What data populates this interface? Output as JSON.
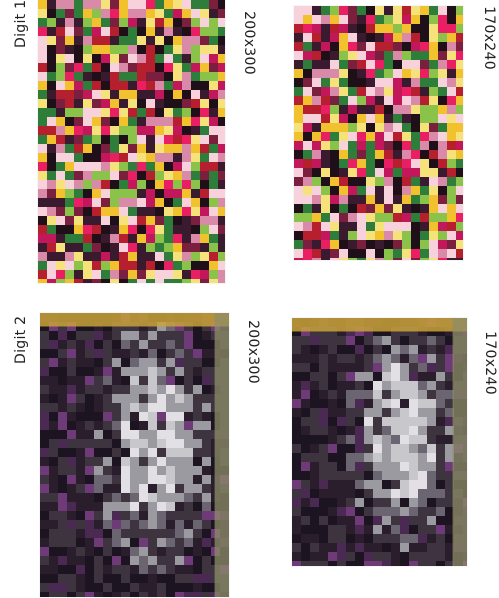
{
  "rows": [
    {
      "label": "Digit 1",
      "palette": "color",
      "rugs": [
        {
          "size": "200x300"
        },
        {
          "size": "170x240"
        }
      ]
    },
    {
      "label": "Digit 2",
      "palette": "mono",
      "rugs": [
        {
          "size": "200x300"
        },
        {
          "size": "170x240"
        }
      ]
    }
  ],
  "colors": {
    "color_palette": [
      "#c2185b",
      "#e91e63",
      "#7b1f3f",
      "#f2c12e",
      "#f5e27a",
      "#2e7d3a",
      "#8bc34a",
      "#3a1a2e",
      "#d98aa8",
      "#b51f2e",
      "#f7d2dc",
      "#1f0f18"
    ],
    "mono_palette": [
      "#1c1420",
      "#2a1e2c",
      "#3d3440",
      "#6a6570",
      "#9a9aa0",
      "#c8c8cc",
      "#e2e0e4",
      "#4a2a52",
      "#6e3a78",
      "#8f8d6a",
      "#b9a24a"
    ],
    "border_gold": "#c9a23a"
  }
}
